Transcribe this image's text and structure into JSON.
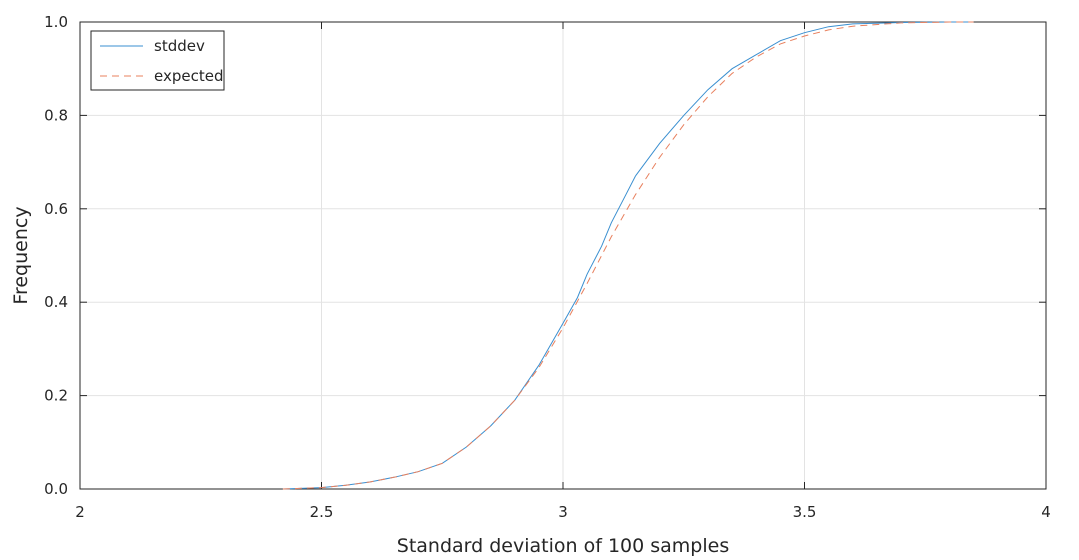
{
  "chart_data": {
    "type": "line",
    "xlabel": "Standard deviation of 100 samples",
    "ylabel": "Frequency",
    "xlim": [
      2,
      4
    ],
    "ylim": [
      0,
      1
    ],
    "xticks": [
      "2",
      "2.5",
      "3",
      "3.5",
      "4"
    ],
    "yticks": [
      "0.0",
      "0.2",
      "0.4",
      "0.6",
      "0.8",
      "1.0"
    ],
    "grid": true,
    "legend": "top-left",
    "series": [
      {
        "name": "stddev",
        "color": "#3a8fd0",
        "style": "solid",
        "x": [
          2.42,
          2.5,
          2.55,
          2.6,
          2.65,
          2.7,
          2.75,
          2.8,
          2.85,
          2.9,
          2.95,
          3.0,
          3.03,
          3.05,
          3.08,
          3.1,
          3.13,
          3.15,
          3.2,
          3.25,
          3.3,
          3.35,
          3.4,
          3.45,
          3.5,
          3.55,
          3.6,
          3.7,
          3.8,
          3.85
        ],
        "y": [
          0.0,
          0.003,
          0.008,
          0.015,
          0.025,
          0.037,
          0.055,
          0.09,
          0.135,
          0.19,
          0.265,
          0.355,
          0.41,
          0.46,
          0.52,
          0.57,
          0.63,
          0.67,
          0.74,
          0.8,
          0.855,
          0.9,
          0.93,
          0.96,
          0.977,
          0.99,
          0.996,
          0.999,
          1.0,
          1.0
        ]
      },
      {
        "name": "expected",
        "color": "#e8805e",
        "style": "dashed",
        "x": [
          2.42,
          2.5,
          2.55,
          2.6,
          2.65,
          2.7,
          2.75,
          2.8,
          2.85,
          2.9,
          2.95,
          3.0,
          3.05,
          3.1,
          3.15,
          3.2,
          3.25,
          3.3,
          3.35,
          3.4,
          3.45,
          3.5,
          3.55,
          3.6,
          3.7,
          3.8,
          3.85
        ],
        "y": [
          0.0,
          0.003,
          0.008,
          0.015,
          0.025,
          0.037,
          0.055,
          0.09,
          0.135,
          0.19,
          0.26,
          0.345,
          0.44,
          0.54,
          0.63,
          0.71,
          0.78,
          0.84,
          0.89,
          0.925,
          0.953,
          0.97,
          0.983,
          0.991,
          0.998,
          1.0,
          1.0
        ]
      }
    ]
  }
}
